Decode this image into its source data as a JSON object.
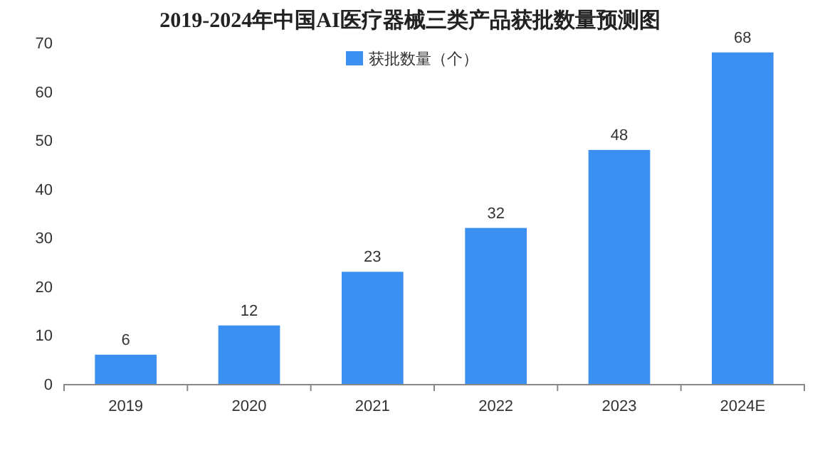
{
  "chart_data": {
    "type": "bar",
    "title": "2019-2024年中国AI医疗器械三类产品获批数量预测图",
    "categories": [
      "2019",
      "2020",
      "2021",
      "2022",
      "2023",
      "2024E"
    ],
    "series": [
      {
        "name": "获批数量（个）",
        "color": "#3b8ff0",
        "values": [
          6,
          12,
          23,
          32,
          48,
          68
        ]
      }
    ],
    "ylim": [
      0,
      70
    ],
    "yticks": [
      0,
      10,
      20,
      30,
      40,
      50,
      60,
      70
    ],
    "data_labels": true,
    "legend": "top"
  }
}
